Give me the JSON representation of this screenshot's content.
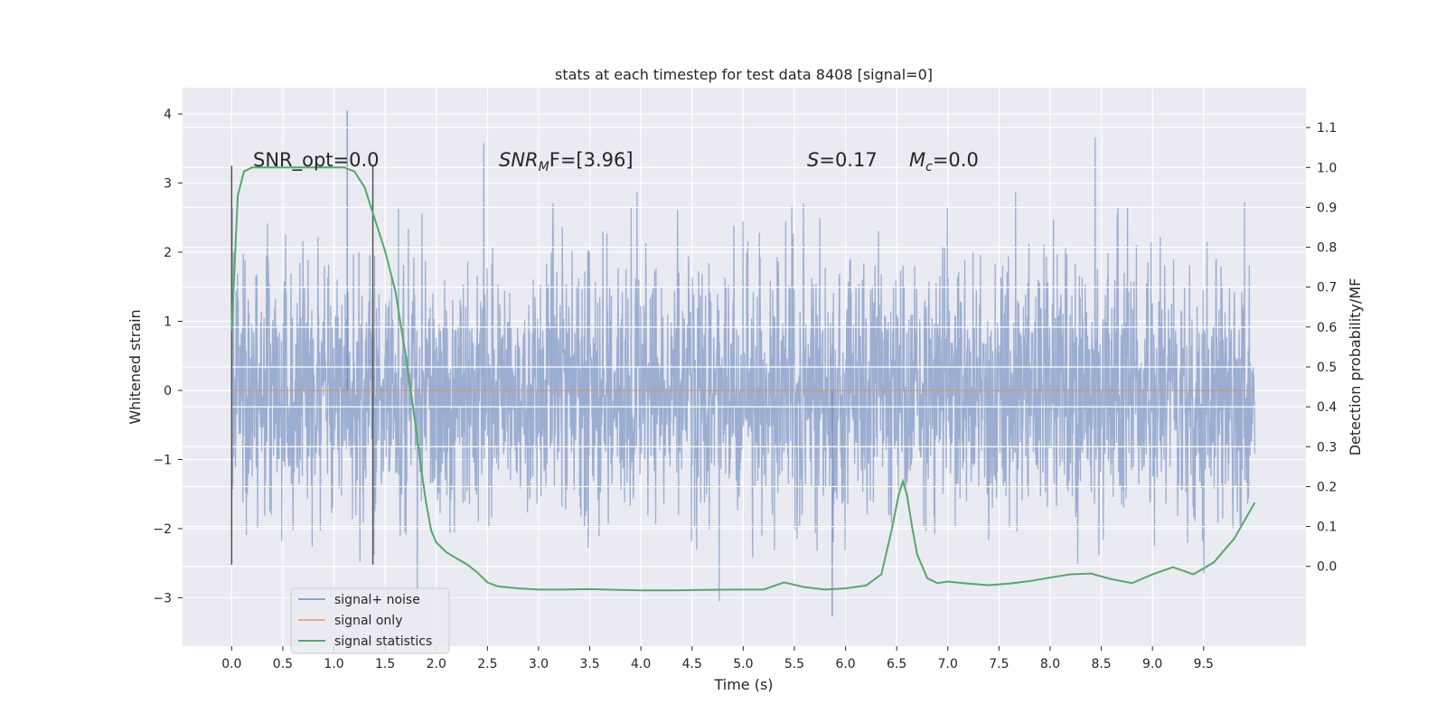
{
  "chart_data": {
    "type": "line",
    "title": "stats at each timestep for test data 8408 [signal=0]",
    "xlabel": "Time (s)",
    "ylabel": "Whitened strain",
    "y2label": "Detection probability/MF",
    "xlim": [
      -0.48,
      10.5
    ],
    "ylim": [
      -3.7,
      4.38
    ],
    "y2lim": [
      -0.2,
      1.2
    ],
    "x_ticks": [
      "0.0",
      "0.5",
      "1.0",
      "1.5",
      "2.0",
      "2.5",
      "3.0",
      "3.5",
      "4.0",
      "4.5",
      "5.0",
      "5.5",
      "6.0",
      "6.5",
      "7.0",
      "7.5",
      "8.0",
      "8.5",
      "9.0",
      "9.5"
    ],
    "x_tick_values": [
      0,
      0.5,
      1,
      1.5,
      2,
      2.5,
      3,
      3.5,
      4,
      4.5,
      5,
      5.5,
      6,
      6.5,
      7,
      7.5,
      8,
      8.5,
      9,
      9.5
    ],
    "y_ticks": [
      "−3",
      "−2",
      "−1",
      "0",
      "1",
      "2",
      "3",
      "4"
    ],
    "y_tick_values": [
      -3,
      -2,
      -1,
      0,
      1,
      2,
      3,
      4
    ],
    "y2_ticks": [
      "0.0",
      "0.1",
      "0.2",
      "0.3",
      "0.4",
      "0.5",
      "0.6",
      "0.7",
      "0.8",
      "0.9",
      "1.0",
      "1.1"
    ],
    "y2_tick_values": [
      0,
      0.1,
      0.2,
      0.3,
      0.4,
      0.5,
      0.6,
      0.7,
      0.8,
      0.9,
      1.0,
      1.1
    ],
    "grid": true,
    "legend_position": "lower-left",
    "annotations": {
      "snr_opt": "SNR_opt=0.0",
      "snr_mf_label": "SNR",
      "snr_mf_sub": "M",
      "snr_mf_rest": "F=[3.96]",
      "s_label": "S",
      "s_rest": "=0.17",
      "mc_label": "M",
      "mc_sub": "c",
      "mc_rest": "=0.0"
    },
    "vertical_markers": [
      0.0,
      1.38
    ],
    "series": [
      {
        "name": "signal+ noise",
        "color": "#4c72b0",
        "kind": "noise",
        "x_range": [
          0,
          10
        ],
        "amplitude_sigma": 0.95,
        "y_min": -3.27,
        "y_max": 4.05
      },
      {
        "name": "signal only",
        "color": "#dd8452",
        "x": [
          0,
          10
        ],
        "y": [
          0,
          0
        ]
      },
      {
        "name": "signal statistics",
        "color": "#55a868",
        "axis": "right",
        "x": [
          0,
          0.06,
          0.12,
          0.2,
          0.3,
          0.5,
          0.8,
          1.0,
          1.1,
          1.2,
          1.3,
          1.4,
          1.5,
          1.6,
          1.7,
          1.75,
          1.8,
          1.85,
          1.9,
          1.95,
          2.0,
          2.1,
          2.2,
          2.3,
          2.4,
          2.5,
          2.6,
          2.8,
          3.0,
          3.2,
          3.5,
          3.8,
          4.0,
          4.3,
          4.6,
          4.9,
          5.2,
          5.4,
          5.6,
          5.8,
          6.0,
          6.2,
          6.35,
          6.45,
          6.52,
          6.56,
          6.6,
          6.65,
          6.7,
          6.8,
          6.9,
          7.0,
          7.2,
          7.4,
          7.6,
          7.8,
          8.0,
          8.2,
          8.4,
          8.6,
          8.8,
          9.0,
          9.2,
          9.4,
          9.6,
          9.8,
          10.0
        ],
        "y": [
          0.59,
          0.93,
          0.99,
          1.0,
          1.0,
          1.0,
          1.0,
          1.0,
          1.0,
          0.99,
          0.95,
          0.87,
          0.79,
          0.69,
          0.53,
          0.44,
          0.35,
          0.25,
          0.16,
          0.09,
          0.06,
          0.035,
          0.02,
          0.005,
          -0.015,
          -0.04,
          -0.05,
          -0.055,
          -0.058,
          -0.058,
          -0.057,
          -0.059,
          -0.06,
          -0.06,
          -0.059,
          -0.058,
          -0.058,
          -0.04,
          -0.052,
          -0.058,
          -0.055,
          -0.048,
          -0.02,
          0.09,
          0.18,
          0.213,
          0.18,
          0.1,
          0.03,
          -0.03,
          -0.042,
          -0.038,
          -0.043,
          -0.047,
          -0.043,
          -0.037,
          -0.028,
          -0.02,
          -0.018,
          -0.032,
          -0.042,
          -0.02,
          -0.002,
          -0.02,
          0.01,
          0.07,
          0.16
        ]
      }
    ]
  }
}
